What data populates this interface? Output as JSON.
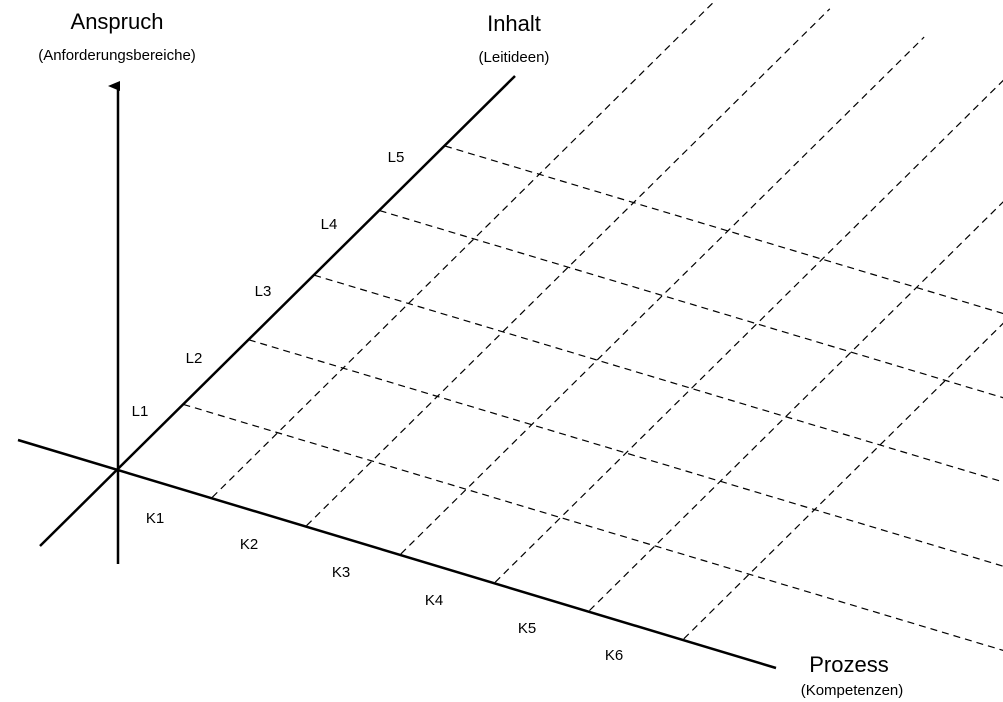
{
  "axes": {
    "anspruch": {
      "title": "Anspruch",
      "subtitle": "(Anforderungsbereiche)"
    },
    "inhalt": {
      "title": "Inhalt",
      "subtitle": "(Leitideen)"
    },
    "prozess": {
      "title": "Prozess",
      "subtitle": "(Kompetenzen)"
    }
  },
  "inhalt_levels": [
    "L1",
    "L2",
    "L3",
    "L4",
    "L5"
  ],
  "prozess_levels": [
    "K1",
    "K2",
    "K3",
    "K4",
    "K5",
    "K6"
  ],
  "colors": {
    "line": "#000000",
    "background": "#ffffff"
  }
}
